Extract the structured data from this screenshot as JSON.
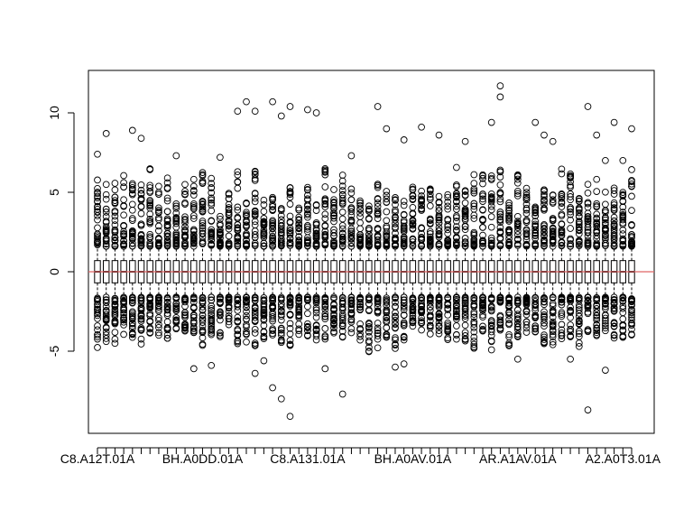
{
  "chart_data": {
    "type": "boxplot",
    "title": "",
    "xlabel": "",
    "ylabel": "",
    "ylim": [
      -10,
      12.5
    ],
    "y_ticks": [
      -5,
      0,
      5,
      10
    ],
    "y_tick_labels": [
      "-5",
      "0",
      "5",
      "10"
    ],
    "x_tick_labels": [
      "C8.A12T.01A",
      "BH.A0DD.01A",
      "C8.A131.01A",
      "BH.A0AV.01A",
      "AR.A1AV.01A",
      "A2.A0T3.01A"
    ],
    "x_tick_label_positions": [
      1,
      13,
      25,
      37,
      49,
      61
    ],
    "n_boxes": 62,
    "box_summary": {
      "median": 0,
      "q1": -0.7,
      "q3": 0.7,
      "whisker_low": -1.6,
      "whisker_high": 1.6,
      "outlier_band_high": [
        1.6,
        4.5
      ],
      "outlier_band_low": [
        -4.0,
        -1.6
      ]
    },
    "extreme_outliers": [
      {
        "box": 1,
        "y": 7.4
      },
      {
        "box": 2,
        "y": 8.7
      },
      {
        "box": 5,
        "y": 8.9
      },
      {
        "box": 6,
        "y": 8.4
      },
      {
        "box": 10,
        "y": 7.3
      },
      {
        "box": 12,
        "y": -6.1
      },
      {
        "box": 14,
        "y": -5.9
      },
      {
        "box": 15,
        "y": 7.2
      },
      {
        "box": 17,
        "y": 10.1
      },
      {
        "box": 18,
        "y": 10.7
      },
      {
        "box": 19,
        "y": -6.4
      },
      {
        "box": 19,
        "y": 10.1
      },
      {
        "box": 20,
        "y": -5.6
      },
      {
        "box": 21,
        "y": 10.7
      },
      {
        "box": 21,
        "y": -7.3
      },
      {
        "box": 22,
        "y": -8.0
      },
      {
        "box": 22,
        "y": 9.8
      },
      {
        "box": 23,
        "y": -9.1
      },
      {
        "box": 23,
        "y": 10.4
      },
      {
        "box": 25,
        "y": 10.2
      },
      {
        "box": 26,
        "y": 10.0
      },
      {
        "box": 27,
        "y": -6.1
      },
      {
        "box": 29,
        "y": -7.7
      },
      {
        "box": 30,
        "y": 7.3
      },
      {
        "box": 33,
        "y": 10.4
      },
      {
        "box": 34,
        "y": 9.0
      },
      {
        "box": 35,
        "y": -6.0
      },
      {
        "box": 36,
        "y": -5.8
      },
      {
        "box": 36,
        "y": 8.3
      },
      {
        "box": 38,
        "y": 9.1
      },
      {
        "box": 40,
        "y": 8.6
      },
      {
        "box": 43,
        "y": 8.2
      },
      {
        "box": 46,
        "y": 9.4
      },
      {
        "box": 47,
        "y": 11.7
      },
      {
        "box": 47,
        "y": 11.0
      },
      {
        "box": 49,
        "y": -5.5
      },
      {
        "box": 51,
        "y": 9.4
      },
      {
        "box": 52,
        "y": 8.6
      },
      {
        "box": 53,
        "y": 8.2
      },
      {
        "box": 55,
        "y": -5.5
      },
      {
        "box": 57,
        "y": 10.4
      },
      {
        "box": 57,
        "y": -8.7
      },
      {
        "box": 58,
        "y": 8.6
      },
      {
        "box": 59,
        "y": -6.2
      },
      {
        "box": 59,
        "y": 7.0
      },
      {
        "box": 60,
        "y": 9.4
      },
      {
        "box": 61,
        "y": 7.0
      },
      {
        "box": 62,
        "y": 9.0
      }
    ],
    "reference_line": {
      "y": 0,
      "color": "#e06666"
    },
    "grid": false,
    "colors": {
      "box": "#000000",
      "reference": "#e06666",
      "background": "#ffffff"
    }
  }
}
